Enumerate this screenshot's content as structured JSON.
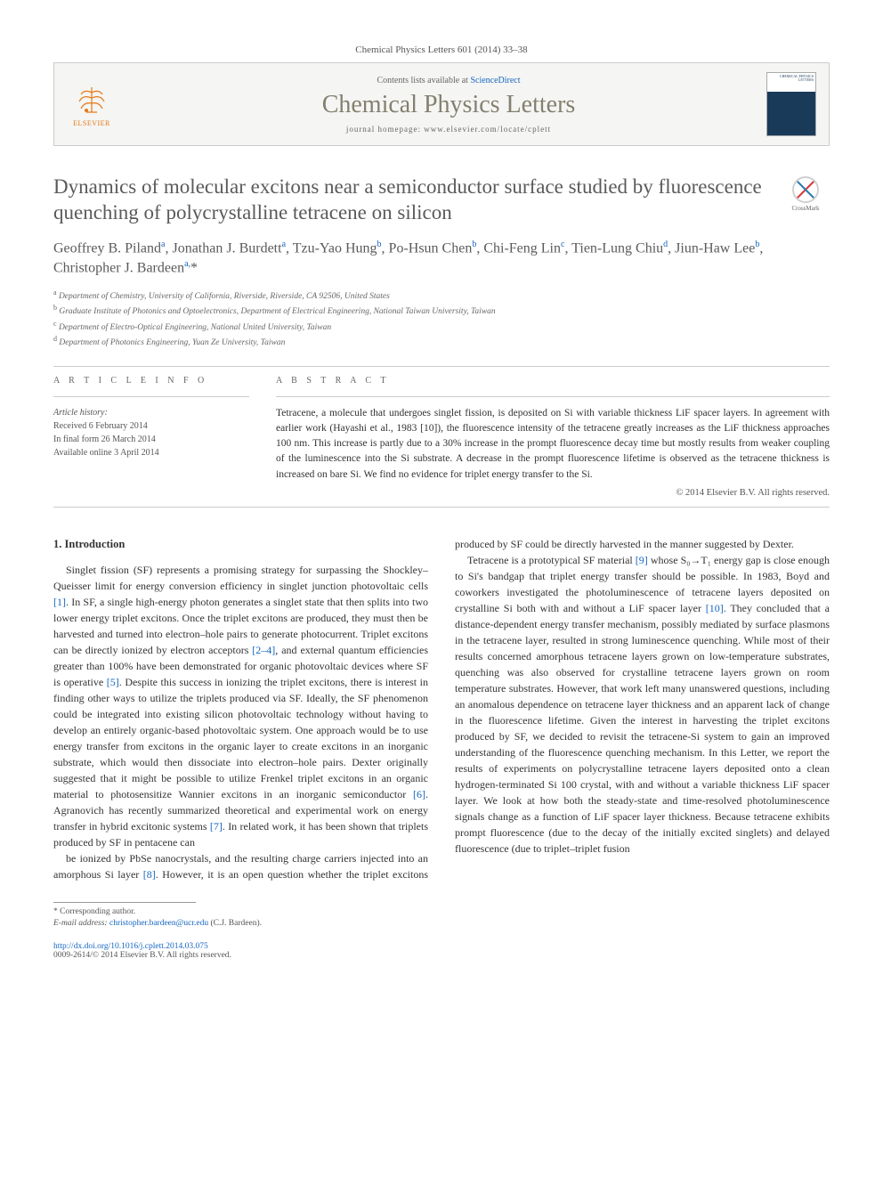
{
  "journal_cite": "Chemical Physics Letters 601 (2014) 33–38",
  "header": {
    "contents_prefix": "Contents lists available at ",
    "contents_link": "ScienceDirect",
    "journal_title": "Chemical Physics Letters",
    "homepage": "journal homepage: www.elsevier.com/locate/cplett",
    "elsevier": "ELSEVIER"
  },
  "crossmark_label": "CrossMark",
  "article_title": "Dynamics of molecular excitons near a semiconductor surface studied by fluorescence quenching of polycrystalline tetracene on silicon",
  "authors_html": "Geoffrey B. Piland<sup>a</sup>, Jonathan J. Burdett<sup>a</sup>, Tzu-Yao Hung<sup>b</sup>, Po-Hsun Chen<sup>b</sup>, Chi-Feng Lin<sup>c</sup>, Tien-Lung Chiu<sup>d</sup>, Jiun-Haw Lee<sup>b</sup>, Christopher J. Bardeen<sup>a,</sup><span class='corr'>*</span>",
  "affiliations": [
    "Department of Chemistry, University of California, Riverside, Riverside, CA 92506, United States",
    "Graduate Institute of Photonics and Optoelectronics, Department of Electrical Engineering, National Taiwan University, Taiwan",
    "Department of Electro-Optical Engineering, National United University, Taiwan",
    "Department of Photonics Engineering, Yuan Ze University, Taiwan"
  ],
  "aff_sups": [
    "a",
    "b",
    "c",
    "d"
  ],
  "info_label": "A R T I C L E   I N F O",
  "abstract_label": "A B S T R A C T",
  "history_label": "Article history:",
  "history": [
    "Received 6 February 2014",
    "In final form 26 March 2014",
    "Available online 3 April 2014"
  ],
  "abstract": "Tetracene, a molecule that undergoes singlet fission, is deposited on Si with variable thickness LiF spacer layers. In agreement with earlier work (Hayashi et al., 1983 [10]), the fluorescence intensity of the tetracene greatly increases as the LiF thickness approaches 100 nm. This increase is partly due to a 30% increase in the prompt fluorescence decay time but mostly results from weaker coupling of the luminescence into the Si substrate. A decrease in the prompt fluorescence lifetime is observed as the tetracene thickness is increased on bare Si. We find no evidence for triplet energy transfer to the Si.",
  "copyright": "© 2014 Elsevier B.V. All rights reserved.",
  "intro_heading": "1. Introduction",
  "body_p1": "Singlet fission (SF) represents a promising strategy for surpassing the Shockley–Queisser limit for energy conversion efficiency in singlet junction photovoltaic cells [1]. In SF, a single high-energy photon generates a singlet state that then splits into two lower energy triplet excitons. Once the triplet excitons are produced, they must then be harvested and turned into electron–hole pairs to generate photocurrent. Triplet excitons can be directly ionized by electron acceptors [2–4], and external quantum efficiencies greater than 100% have been demonstrated for organic photovoltaic devices where SF is operative [5]. Despite this success in ionizing the triplet excitons, there is interest in finding other ways to utilize the triplets produced via SF. Ideally, the SF phenomenon could be integrated into existing silicon photovoltaic technology without having to develop an entirely organic-based photovoltaic system. One approach would be to use energy transfer from excitons in the organic layer to create excitons in an inorganic substrate, which would then dissociate into electron–hole pairs. Dexter originally suggested that it might be possible to utilize Frenkel triplet excitons in an organic material to photosensitize Wannier excitons in an inorganic semiconductor [6]. Agranovich has recently summarized theoretical and experimental work on energy transfer in hybrid excitonic systems [7]. In related work, it has been shown that triplets produced by SF in pentacene can",
  "body_p2": "be ionized by PbSe nanocrystals, and the resulting charge carriers injected into an amorphous Si layer [8]. However, it is an open question whether the triplet excitons produced by SF could be directly harvested in the manner suggested by Dexter.",
  "body_p3": "Tetracene is a prototypical SF material [9] whose S₀→T₁ energy gap is close enough to Si's bandgap that triplet energy transfer should be possible. In 1983, Boyd and coworkers investigated the photoluminescence of tetracene layers deposited on crystalline Si both with and without a LiF spacer layer [10]. They concluded that a distance-dependent energy transfer mechanism, possibly mediated by surface plasmons in the tetracene layer, resulted in strong luminescence quenching. While most of their results concerned amorphous tetracene layers grown on low-temperature substrates, quenching was also observed for crystalline tetracene layers grown on room temperature substrates. However, that work left many unanswered questions, including an anomalous dependence on tetracene layer thickness and an apparent lack of change in the fluorescence lifetime. Given the interest in harvesting the triplet excitons produced by SF, we decided to revisit the tetracene-Si system to gain an improved understanding of the fluorescence quenching mechanism. In this Letter, we report the results of experiments on polycrystalline tetracene layers deposited onto a clean hydrogen-terminated Si 100 crystal, with and without a variable thickness LiF spacer layer. We look at how both the steady-state and time-resolved photoluminescence signals change as a function of LiF spacer layer thickness. Because tetracene exhibits prompt fluorescence (due to the decay of the initially excited singlets) and delayed fluorescence (due to triplet–triplet fusion",
  "corr_label": "* Corresponding author.",
  "email_label": "E-mail address: ",
  "email": "christopher.bardeen@ucr.edu",
  "email_suffix": " (C.J. Bardeen).",
  "doi": "http://dx.doi.org/10.1016/j.cplett.2014.03.075",
  "issn": "0009-2614/© 2014 Elsevier B.V. All rights reserved.",
  "colors": {
    "link": "#1566c0",
    "muted": "#666",
    "title_gray": "#5a5a5a",
    "elsevier_orange": "#e67817"
  }
}
